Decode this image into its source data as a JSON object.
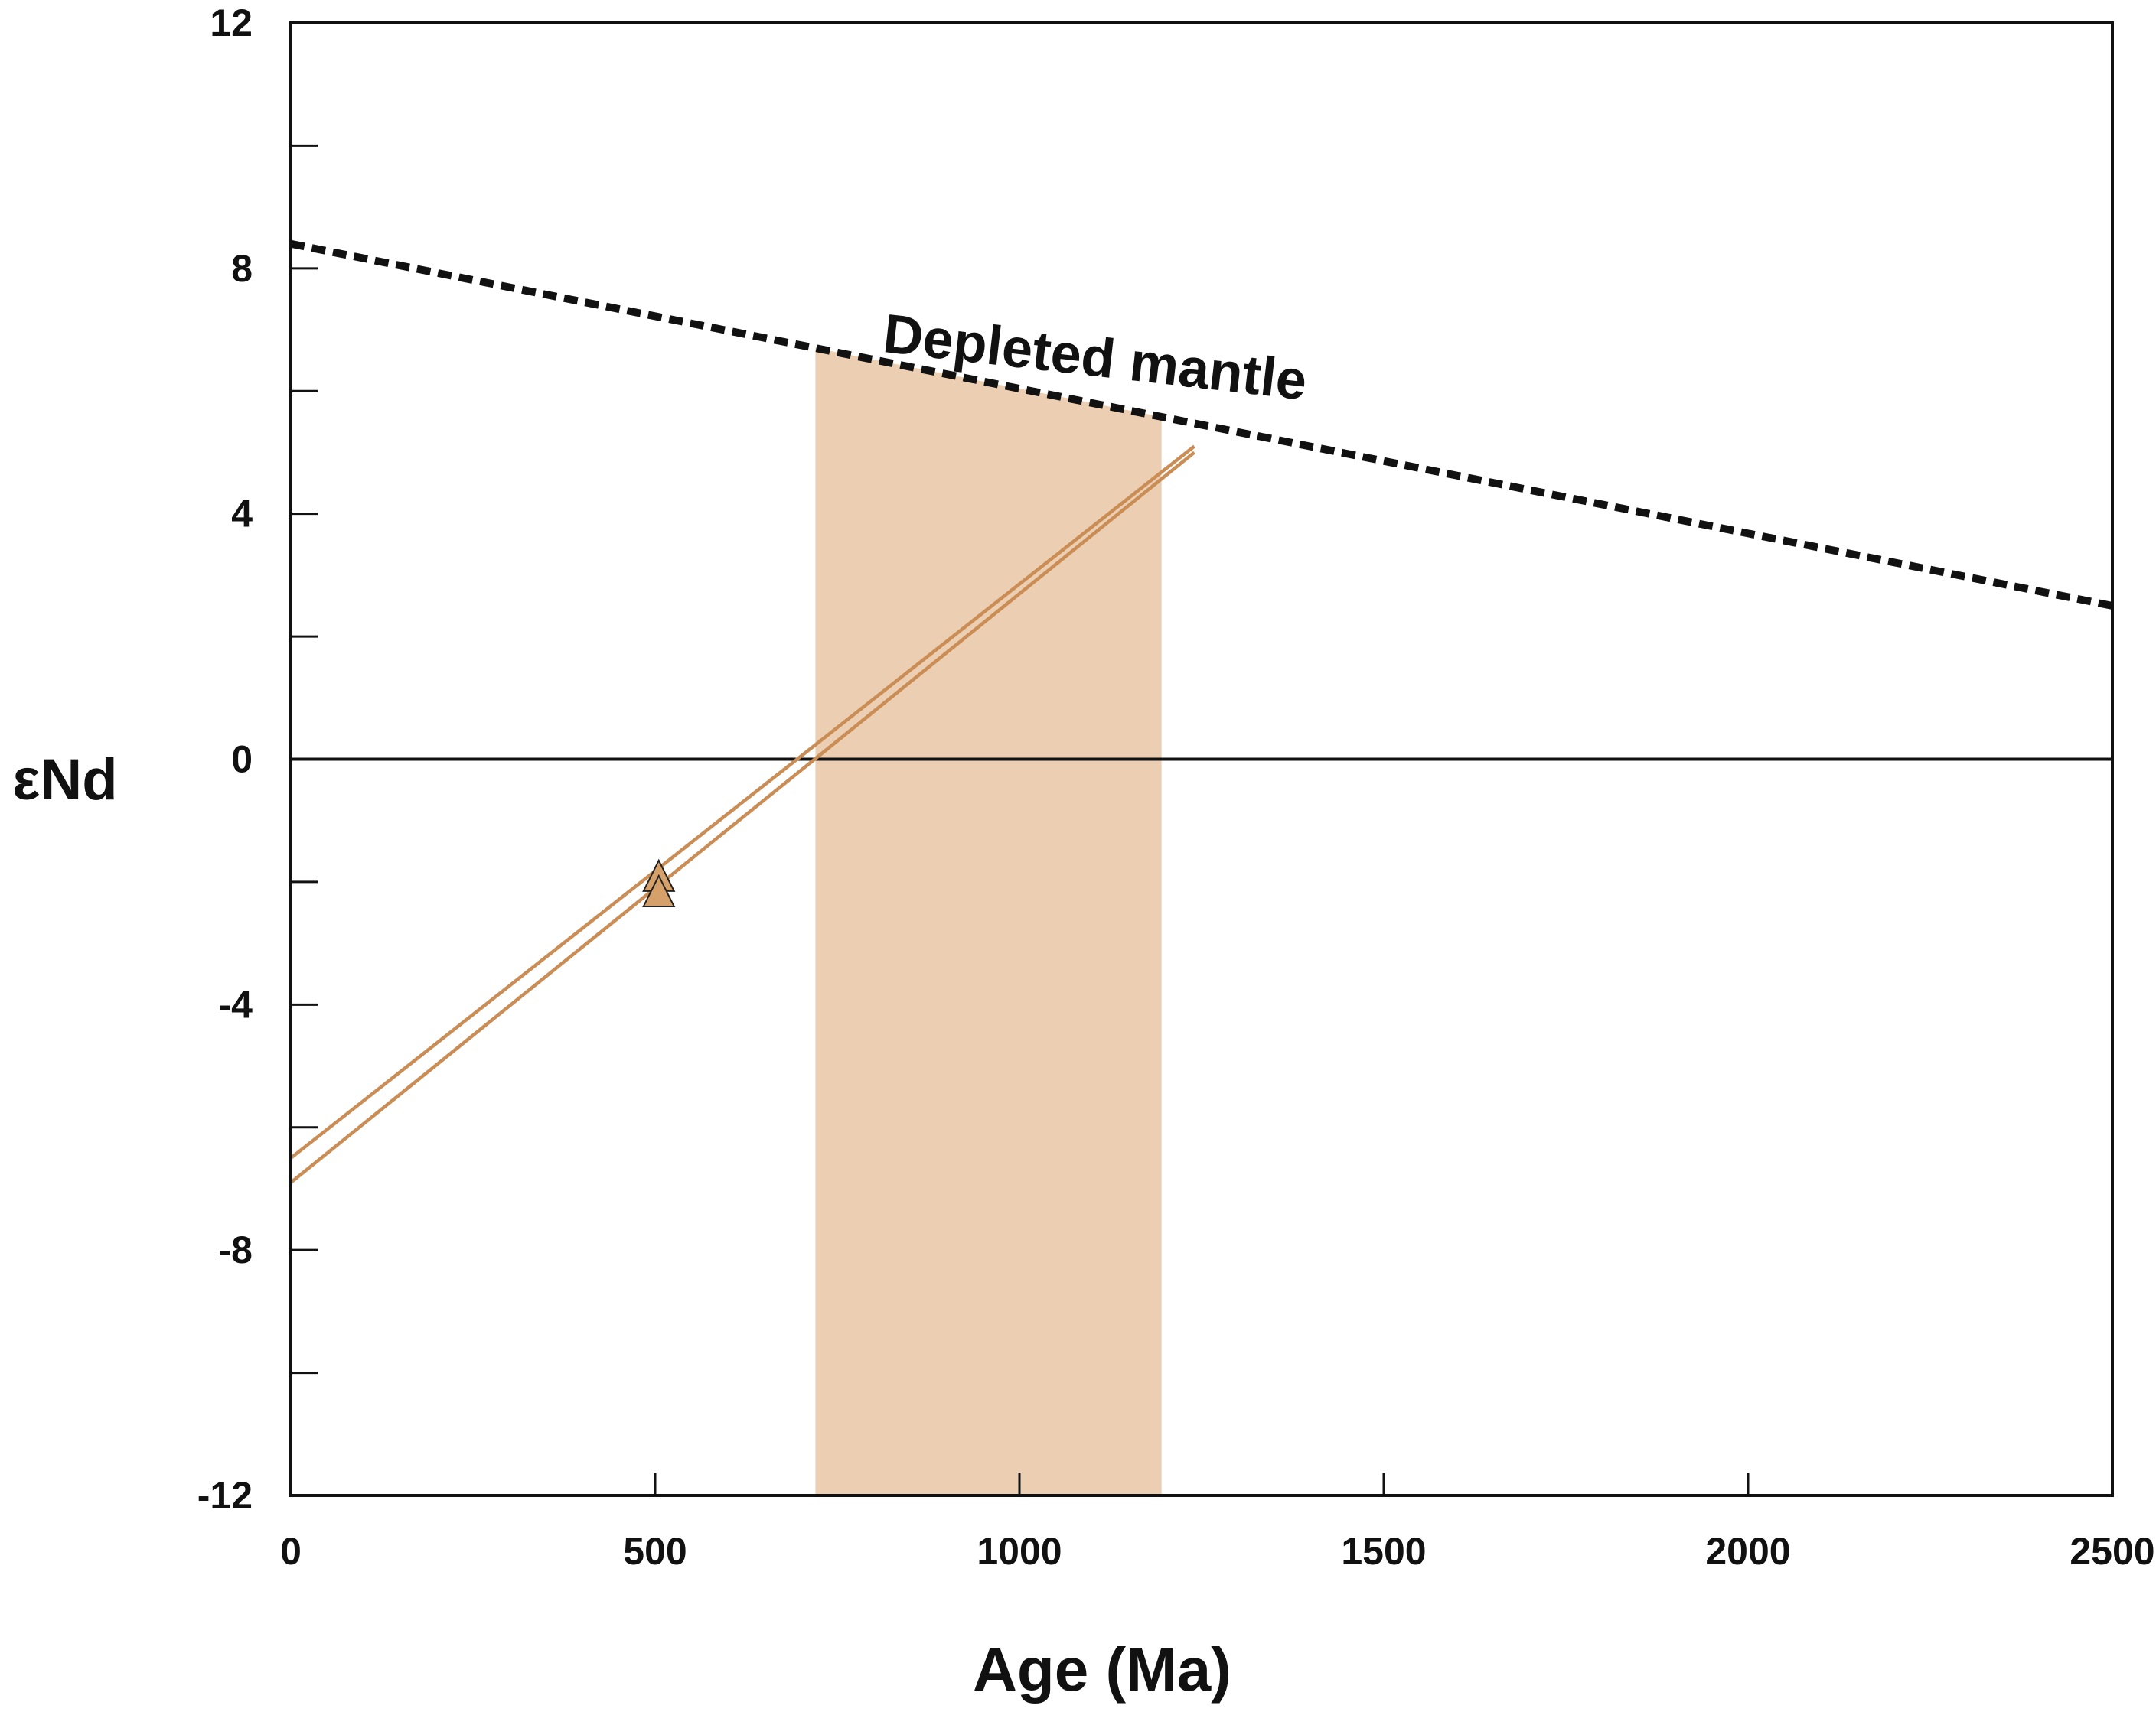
{
  "chart_data": {
    "type": "line",
    "title": "",
    "xlabel": "Age (Ma)",
    "ylabel": "εNd",
    "xlim": [
      0,
      2500
    ],
    "ylim": [
      -12,
      12
    ],
    "x_ticks_labeled": [
      0,
      500,
      1000,
      1500,
      2000,
      2500
    ],
    "x_tick_labels": [
      "0",
      "500",
      "1000",
      "1500",
      "2000",
      "2500"
    ],
    "y_ticks_labeled": [
      -12,
      -8,
      -4,
      0,
      4,
      8,
      12
    ],
    "y_tick_labels": [
      "-12",
      "-8",
      "-4",
      "0",
      "4",
      "8",
      "12"
    ],
    "y_ticks_minor": [
      -10,
      -6,
      -2,
      2,
      6,
      10
    ],
    "grid": false,
    "reference_line_y": 0,
    "series": [
      {
        "style": "dashed",
        "color": "#111111",
        "points": [
          [
            0,
            8.4
          ],
          [
            2500,
            2.5
          ]
        ]
      },
      {
        "style": "solid",
        "color": "#c98d55",
        "points": [
          [
            0,
            -6.5
          ],
          [
            1240,
            5.1
          ]
        ]
      },
      {
        "style": "solid",
        "color": "#c98d55",
        "points": [
          [
            0,
            -6.9
          ],
          [
            1240,
            5.0
          ]
        ]
      }
    ],
    "markers": [
      {
        "shape": "triangle",
        "x": 505,
        "y": -1.9,
        "color": "#d6a06a"
      },
      {
        "shape": "triangle",
        "x": 505,
        "y": -2.15,
        "color": "#d6a06a"
      }
    ],
    "shaded_band": {
      "x_from": 720,
      "x_to": 1195,
      "color": "#eccfb2"
    },
    "annotations": [
      {
        "text": "Depleted mantle",
        "x": 1080,
        "y": 6.0,
        "rotation_deg": 6.5
      }
    ]
  }
}
